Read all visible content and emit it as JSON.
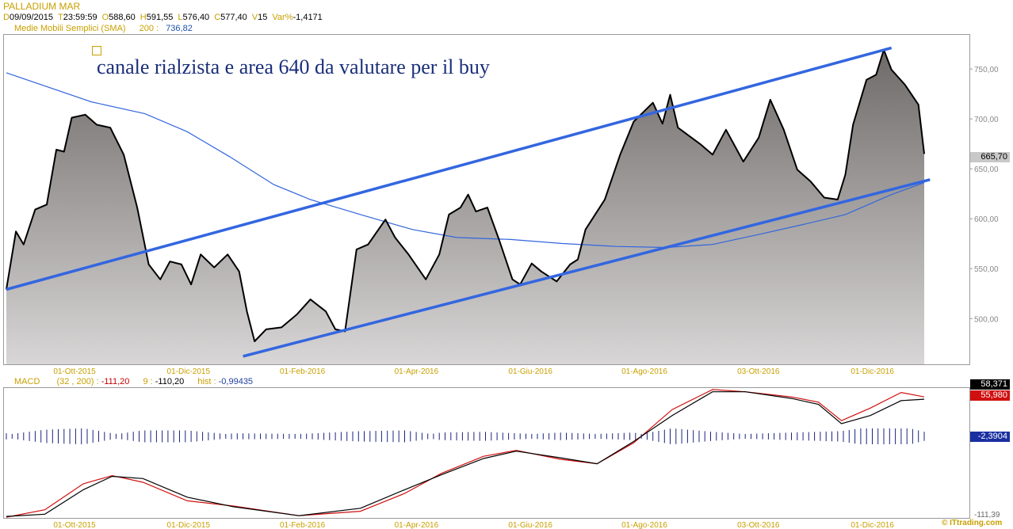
{
  "header": {
    "title": "PALLADIUM MAR",
    "fields": [
      {
        "key": "D",
        "value": "09/09/2015"
      },
      {
        "key": "T",
        "value": "23:59:59"
      },
      {
        "key": "O",
        "value": "588,60"
      },
      {
        "key": "H",
        "value": "591,55"
      },
      {
        "key": "L",
        "value": "576,40"
      },
      {
        "key": "C",
        "value": "577,40"
      },
      {
        "key": "V",
        "value": "15"
      },
      {
        "key": "Var%",
        "value": "-1,4171"
      }
    ],
    "sma_label": "Medie Mobili Semplici (SMA)",
    "sma_period": "200 :",
    "sma_value": "736,82"
  },
  "annotation": "canale rialzista e area 640 da valutare per il buy",
  "colors": {
    "channel": "#3366e0",
    "sma": "#3366dd",
    "price": "#000000",
    "macd_line": "#000000",
    "signal_line": "#d01010",
    "hist": "#1a237e",
    "accent": "#c8a000"
  },
  "chart_data": [
    {
      "type": "area",
      "title": "PALLADIUM MAR",
      "y_ticks": [
        "750,00",
        "700,00",
        "650,00",
        "600,00",
        "550,00",
        "500,00"
      ],
      "last_value_label": "665,70",
      "ylim": [
        455,
        785
      ],
      "x_ticks": [
        "01-Ott-2015",
        "01-Dic-2015",
        "01-Feb-2016",
        "01-Apr-2016",
        "01-Giu-2016",
        "01-Ago-2016",
        "03-Ott-2016",
        "01-Dic-2016"
      ],
      "price": [
        {
          "x": "2015-09-09",
          "y": 530
        },
        {
          "x": "2015-09-14",
          "y": 588
        },
        {
          "x": "2015-09-18",
          "y": 575
        },
        {
          "x": "2015-09-24",
          "y": 610
        },
        {
          "x": "2015-09-30",
          "y": 615
        },
        {
          "x": "2015-10-05",
          "y": 670
        },
        {
          "x": "2015-10-09",
          "y": 668
        },
        {
          "x": "2015-10-13",
          "y": 702
        },
        {
          "x": "2015-10-20",
          "y": 705
        },
        {
          "x": "2015-10-26",
          "y": 695
        },
        {
          "x": "2015-11-02",
          "y": 692
        },
        {
          "x": "2015-11-09",
          "y": 665
        },
        {
          "x": "2015-11-16",
          "y": 612
        },
        {
          "x": "2015-11-22",
          "y": 555
        },
        {
          "x": "2015-11-28",
          "y": 540
        },
        {
          "x": "2015-12-03",
          "y": 558
        },
        {
          "x": "2015-12-09",
          "y": 555
        },
        {
          "x": "2015-12-14",
          "y": 535
        },
        {
          "x": "2015-12-19",
          "y": 565
        },
        {
          "x": "2015-12-26",
          "y": 552
        },
        {
          "x": "2016-01-02",
          "y": 565
        },
        {
          "x": "2016-01-08",
          "y": 548
        },
        {
          "x": "2016-01-12",
          "y": 508
        },
        {
          "x": "2016-01-16",
          "y": 478
        },
        {
          "x": "2016-01-22",
          "y": 490
        },
        {
          "x": "2016-01-30",
          "y": 492
        },
        {
          "x": "2016-02-07",
          "y": 505
        },
        {
          "x": "2016-02-14",
          "y": 520
        },
        {
          "x": "2016-02-22",
          "y": 508
        },
        {
          "x": "2016-02-27",
          "y": 490
        },
        {
          "x": "2016-03-03",
          "y": 488
        },
        {
          "x": "2016-03-09",
          "y": 570
        },
        {
          "x": "2016-03-15",
          "y": 575
        },
        {
          "x": "2016-03-24",
          "y": 600
        },
        {
          "x": "2016-03-29",
          "y": 582
        },
        {
          "x": "2016-04-05",
          "y": 565
        },
        {
          "x": "2016-04-14",
          "y": 540
        },
        {
          "x": "2016-04-21",
          "y": 565
        },
        {
          "x": "2016-04-26",
          "y": 605
        },
        {
          "x": "2016-05-02",
          "y": 612
        },
        {
          "x": "2016-05-06",
          "y": 625
        },
        {
          "x": "2016-05-10",
          "y": 608
        },
        {
          "x": "2016-05-16",
          "y": 612
        },
        {
          "x": "2016-05-22",
          "y": 580
        },
        {
          "x": "2016-05-29",
          "y": 540
        },
        {
          "x": "2016-06-02",
          "y": 535
        },
        {
          "x": "2016-06-08",
          "y": 556
        },
        {
          "x": "2016-06-13",
          "y": 548
        },
        {
          "x": "2016-06-21",
          "y": 538
        },
        {
          "x": "2016-06-28",
          "y": 555
        },
        {
          "x": "2016-07-02",
          "y": 560
        },
        {
          "x": "2016-07-06",
          "y": 590
        },
        {
          "x": "2016-07-16",
          "y": 620
        },
        {
          "x": "2016-07-24",
          "y": 665
        },
        {
          "x": "2016-07-31",
          "y": 698
        },
        {
          "x": "2016-08-10",
          "y": 717
        },
        {
          "x": "2016-08-15",
          "y": 696
        },
        {
          "x": "2016-08-19",
          "y": 725
        },
        {
          "x": "2016-08-23",
          "y": 692
        },
        {
          "x": "2016-09-04",
          "y": 675
        },
        {
          "x": "2016-09-10",
          "y": 665
        },
        {
          "x": "2016-09-17",
          "y": 690
        },
        {
          "x": "2016-09-26",
          "y": 658
        },
        {
          "x": "2016-10-04",
          "y": 682
        },
        {
          "x": "2016-10-10",
          "y": 720
        },
        {
          "x": "2016-10-17",
          "y": 690
        },
        {
          "x": "2016-10-24",
          "y": 650
        },
        {
          "x": "2016-10-31",
          "y": 638
        },
        {
          "x": "2016-11-07",
          "y": 622
        },
        {
          "x": "2016-11-14",
          "y": 620
        },
        {
          "x": "2016-11-18",
          "y": 645
        },
        {
          "x": "2016-11-22",
          "y": 695
        },
        {
          "x": "2016-11-29",
          "y": 740
        },
        {
          "x": "2016-12-04",
          "y": 745
        },
        {
          "x": "2016-12-08",
          "y": 770
        },
        {
          "x": "2016-12-12",
          "y": 750
        },
        {
          "x": "2016-12-19",
          "y": 735
        },
        {
          "x": "2016-12-26",
          "y": 715
        },
        {
          "x": "2016-12-29",
          "y": 665.7
        }
      ],
      "sma_200": [
        {
          "x": "2015-09-09",
          "y": 747
        },
        {
          "x": "2015-10-23",
          "y": 718
        },
        {
          "x": "2015-11-20",
          "y": 706
        },
        {
          "x": "2015-12-12",
          "y": 688
        },
        {
          "x": "2016-01-03",
          "y": 663
        },
        {
          "x": "2016-01-26",
          "y": 635
        },
        {
          "x": "2016-02-14",
          "y": 620
        },
        {
          "x": "2016-03-11",
          "y": 605
        },
        {
          "x": "2016-04-07",
          "y": 590
        },
        {
          "x": "2016-04-30",
          "y": 582
        },
        {
          "x": "2016-05-28",
          "y": 580
        },
        {
          "x": "2016-06-24",
          "y": 576
        },
        {
          "x": "2016-07-22",
          "y": 573
        },
        {
          "x": "2016-08-17",
          "y": 572
        },
        {
          "x": "2016-09-10",
          "y": 575
        },
        {
          "x": "2016-10-04",
          "y": 585
        },
        {
          "x": "2016-10-27",
          "y": 595
        },
        {
          "x": "2016-11-18",
          "y": 605
        },
        {
          "x": "2016-12-12",
          "y": 625
        },
        {
          "x": "2016-12-29",
          "y": 637
        }
      ],
      "channel_lines": [
        {
          "from": {
            "x": "2015-09-09",
            "y": 530
          },
          "to": {
            "x": "2016-12-12",
            "y": 772
          }
        },
        {
          "from": {
            "x": "2016-01-10",
            "y": 463
          },
          "to": {
            "x": "2017-01-01",
            "y": 640
          }
        }
      ]
    },
    {
      "type": "line",
      "title": "MACD",
      "params": "(32 , 200) :",
      "macd_value": "-111,20",
      "signal_label": "9 :",
      "signal_value": "-110,20",
      "hist_label": "hist :",
      "hist_value": "-0,99435",
      "y_ticks": [
        "-111,39"
      ],
      "badges": [
        "58,371",
        "55,980",
        "-2,3904"
      ],
      "ylim": [
        -113,
        62
      ],
      "x_ticks": [
        "01-Ott-2015",
        "01-Dic-2015",
        "01-Feb-2016",
        "01-Apr-2016",
        "01-Giu-2016",
        "01-Ago-2016",
        "03-Ott-2016",
        "01-Dic-2016"
      ],
      "series": [
        {
          "name": "MACD",
          "values": [
            {
              "x": "2015-09-09",
              "y": -111
            },
            {
              "x": "2015-09-29",
              "y": -108
            },
            {
              "x": "2015-10-19",
              "y": -75
            },
            {
              "x": "2015-11-03",
              "y": -57
            },
            {
              "x": "2015-11-19",
              "y": -60
            },
            {
              "x": "2015-12-12",
              "y": -85
            },
            {
              "x": "2016-01-05",
              "y": -98
            },
            {
              "x": "2016-02-08",
              "y": -110
            },
            {
              "x": "2016-03-11",
              "y": -100
            },
            {
              "x": "2016-04-03",
              "y": -75
            },
            {
              "x": "2016-04-22",
              "y": -55
            },
            {
              "x": "2016-05-14",
              "y": -33
            },
            {
              "x": "2016-05-31",
              "y": -23
            },
            {
              "x": "2016-06-23",
              "y": -32
            },
            {
              "x": "2016-07-12",
              "y": -40
            },
            {
              "x": "2016-07-31",
              "y": -10
            },
            {
              "x": "2016-08-20",
              "y": 25
            },
            {
              "x": "2016-09-10",
              "y": 57
            },
            {
              "x": "2016-09-27",
              "y": 57
            },
            {
              "x": "2016-10-21",
              "y": 48
            },
            {
              "x": "2016-11-04",
              "y": 40
            },
            {
              "x": "2016-11-16",
              "y": 14
            },
            {
              "x": "2016-12-01",
              "y": 25
            },
            {
              "x": "2016-12-17",
              "y": 45
            },
            {
              "x": "2016-12-29",
              "y": 47
            }
          ]
        },
        {
          "name": "Signal",
          "values": [
            {
              "x": "2015-09-09",
              "y": -112
            },
            {
              "x": "2015-09-29",
              "y": -102
            },
            {
              "x": "2015-10-19",
              "y": -67
            },
            {
              "x": "2015-11-03",
              "y": -56
            },
            {
              "x": "2015-11-19",
              "y": -65
            },
            {
              "x": "2015-12-12",
              "y": -90
            },
            {
              "x": "2016-01-05",
              "y": -97
            },
            {
              "x": "2016-02-08",
              "y": -110
            },
            {
              "x": "2016-03-11",
              "y": -104
            },
            {
              "x": "2016-04-03",
              "y": -80
            },
            {
              "x": "2016-04-22",
              "y": -53
            },
            {
              "x": "2016-05-14",
              "y": -30
            },
            {
              "x": "2016-05-31",
              "y": -22
            },
            {
              "x": "2016-06-23",
              "y": -34
            },
            {
              "x": "2016-07-12",
              "y": -40
            },
            {
              "x": "2016-07-31",
              "y": -12
            },
            {
              "x": "2016-08-20",
              "y": 33
            },
            {
              "x": "2016-09-10",
              "y": 60
            },
            {
              "x": "2016-09-27",
              "y": 57
            },
            {
              "x": "2016-10-21",
              "y": 50
            },
            {
              "x": "2016-11-04",
              "y": 43
            },
            {
              "x": "2016-11-16",
              "y": 18
            },
            {
              "x": "2016-12-01",
              "y": 35
            },
            {
              "x": "2016-12-17",
              "y": 56
            },
            {
              "x": "2016-12-29",
              "y": 50
            }
          ]
        }
      ]
    }
  ],
  "credit": "© ITtrading.com"
}
